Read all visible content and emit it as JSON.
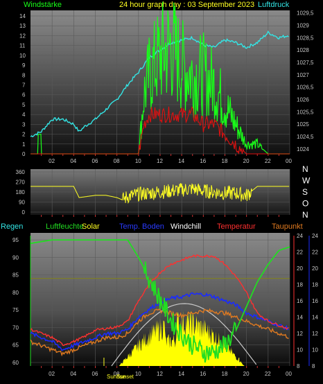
{
  "header": {
    "title": "24 hour graph day : 03 September 2023",
    "left_label": "Windstärke",
    "right_label": "Luftdruck"
  },
  "colors": {
    "wind": "#19ff19",
    "gust_red": "#e01010",
    "pressure": "#33e6e6",
    "wind_dir": "#ffff22",
    "humidity": "#22dd22",
    "solar": "#ffff00",
    "soil_temp": "#1a2bff",
    "windchill": "#ffffff",
    "temperature": "#ff3030",
    "dewpoint": "#e07a20",
    "rain": "#808020",
    "sun_curve": "#c8c8c8"
  },
  "x_ticks": [
    "02",
    "04",
    "06",
    "08",
    "10",
    "12",
    "14",
    "16",
    "18",
    "20",
    "22",
    "00"
  ],
  "chart_data": [
    {
      "type": "line",
      "x_unit": "hour",
      "xlim": [
        0,
        24
      ],
      "left_axis": {
        "label": "Windstärke",
        "ticks": [
          "0",
          "1",
          "2",
          "3",
          "4",
          "5",
          "6",
          "7",
          "8",
          "9",
          "10",
          "11",
          "12",
          "13",
          "14"
        ],
        "ylim": [
          0,
          14
        ]
      },
      "right_axis": {
        "label": "Luftdruck",
        "ticks": [
          "1024",
          "1024,5",
          "1025",
          "1025,5",
          "1026",
          "1026,5",
          "1027",
          "1027,5",
          "1028",
          "1028,5",
          "1029",
          "1029,5"
        ],
        "ylim": [
          1023.8,
          1029.6
        ]
      },
      "series": [
        {
          "name": "Luftdruck",
          "axis": "right",
          "color": "#33e6e6",
          "x": [
            0,
            1,
            2,
            3,
            4,
            4.5,
            5,
            6,
            7,
            8,
            9,
            10,
            11,
            12,
            13,
            14,
            15,
            16,
            17,
            18,
            19,
            20,
            21,
            22,
            23,
            24
          ],
          "y": [
            1024.5,
            1024.7,
            1025.2,
            1025.2,
            1025.0,
            1024.7,
            1024.9,
            1025.2,
            1025.6,
            1026.0,
            1026.6,
            1027.1,
            1027.7,
            1028.0,
            1028.3,
            1028.4,
            1028.5,
            1028.2,
            1028.1,
            1028.4,
            1028.3,
            1028.1,
            1028.3,
            1028.7,
            1028.5,
            1028.6
          ]
        },
        {
          "name": "Windstärke",
          "axis": "left",
          "color": "#19ff19",
          "x": [
            0,
            1,
            2,
            3,
            4,
            5,
            6,
            7,
            8,
            9,
            10,
            10.5,
            11,
            12,
            13,
            14,
            15,
            16,
            17,
            18,
            19,
            20,
            21,
            22,
            23,
            24
          ],
          "y": [
            0,
            0,
            0,
            0,
            0,
            0,
            0,
            0,
            0,
            0,
            0,
            6,
            8,
            10,
            11,
            9,
            8,
            8,
            7,
            5,
            3,
            1,
            1,
            0,
            0,
            0
          ]
        },
        {
          "name": "Windböen",
          "axis": "left",
          "color": "#e01010",
          "x": [
            0,
            10,
            10.5,
            11,
            12,
            13,
            14,
            15,
            16,
            17,
            18,
            19,
            20,
            21,
            24
          ],
          "y": [
            0,
            0,
            3,
            4,
            4,
            4,
            4,
            4,
            3,
            3,
            2,
            1,
            0,
            0,
            0
          ]
        }
      ]
    },
    {
      "type": "scatter",
      "x_unit": "hour",
      "xlim": [
        0,
        24
      ],
      "left_axis": {
        "ticks": [
          "0",
          "90",
          "180",
          "270",
          "360"
        ],
        "ylim": [
          0,
          360
        ]
      },
      "right_axis": {
        "ticks": [
          "N",
          "W",
          "S",
          "O",
          "N"
        ]
      },
      "series": [
        {
          "name": "Windrichtung",
          "color": "#ffff22",
          "x": [
            0,
            4,
            4.5,
            6,
            7,
            8,
            8.5,
            9,
            10,
            11,
            12,
            13,
            14,
            15,
            16,
            17,
            18,
            19,
            20,
            21,
            22,
            24
          ],
          "y": [
            230,
            230,
            130,
            150,
            150,
            130,
            110,
            140,
            160,
            170,
            180,
            190,
            200,
            210,
            190,
            180,
            170,
            170,
            150,
            230,
            230,
            230
          ]
        }
      ]
    },
    {
      "type": "line",
      "x_unit": "hour",
      "xlim": [
        0,
        24
      ],
      "legend": [
        "Regen",
        "Luftfeuchte",
        "Solar",
        "Temp. Boden",
        "Windchill",
        "Temperatur",
        "Taupunkt"
      ],
      "left_axis": {
        "ticks": [
          "60",
          "65",
          "70",
          "75",
          "80",
          "85",
          "90",
          "95"
        ],
        "ylim": [
          59,
          97
        ]
      },
      "right_axis_red": {
        "ticks": [
          "8",
          "10",
          "12",
          "14",
          "16",
          "18",
          "20",
          "22",
          "24"
        ],
        "ylim": [
          8,
          24
        ]
      },
      "right_axis_blue": {
        "ticks": [
          "8",
          "10",
          "12",
          "14",
          "16",
          "18",
          "20",
          "22",
          "24"
        ],
        "ylim": [
          8,
          24
        ]
      },
      "sun_markers": [
        "Sunrise",
        "Sunset"
      ],
      "series": [
        {
          "name": "Luftfeuchte",
          "axis": "left",
          "color": "#22dd22",
          "x": [
            0,
            2,
            4,
            6,
            8,
            9,
            10,
            11,
            12,
            13,
            14,
            15,
            16,
            17,
            18,
            19,
            20,
            21,
            22,
            23,
            24
          ],
          "y": [
            94,
            95,
            95,
            95,
            95,
            95,
            90,
            84,
            78,
            72,
            68,
            65,
            63,
            63,
            65,
            69,
            76,
            83,
            88,
            92,
            93
          ]
        },
        {
          "name": "Temperatur",
          "axis": "right",
          "color": "#ff3030",
          "x": [
            0,
            1,
            2,
            3,
            4,
            5,
            6,
            7,
            8,
            9,
            10,
            11,
            12,
            13,
            14,
            15,
            16,
            17,
            18,
            19,
            20,
            21,
            22,
            23,
            24
          ],
          "y": [
            12.5,
            12.0,
            11.5,
            10.6,
            11.0,
            11.6,
            12.4,
            12.6,
            12.8,
            13.5,
            16.0,
            18.0,
            19.5,
            20.5,
            21.0,
            21.5,
            21.5,
            21.5,
            20.5,
            19.0,
            17.0,
            14.5,
            13.5,
            13.0,
            12.5
          ]
        },
        {
          "name": "Temp. Boden",
          "axis": "right",
          "color": "#1a2bff",
          "x": [
            0,
            1,
            2,
            3,
            4,
            5,
            6,
            7,
            8,
            9,
            10,
            11,
            12,
            13,
            14,
            15,
            16,
            17,
            18,
            19,
            20,
            21,
            22,
            23,
            24
          ],
          "y": [
            12.0,
            11.5,
            11.0,
            10.0,
            10.5,
            11.0,
            11.5,
            12.0,
            12.0,
            12.5,
            14.0,
            15.0,
            15.8,
            16.3,
            16.5,
            16.8,
            16.8,
            16.5,
            16.0,
            15.5,
            14.5,
            14.0,
            13.5,
            13.0,
            12.5
          ]
        },
        {
          "name": "Taupunkt",
          "axis": "right",
          "color": "#e07a20",
          "x": [
            0,
            1,
            2,
            3,
            4,
            5,
            6,
            7,
            8,
            9,
            10,
            11,
            12,
            13,
            14,
            15,
            16,
            17,
            18,
            19,
            20,
            21,
            22,
            23,
            24
          ],
          "y": [
            11.0,
            10.5,
            10.0,
            9.5,
            10.0,
            10.5,
            11.0,
            11.5,
            11.5,
            12.0,
            13.5,
            14.5,
            14.8,
            14.5,
            14.2,
            14.5,
            14.8,
            14.7,
            14.5,
            14.0,
            13.5,
            13.0,
            12.5,
            12.0,
            11.5
          ]
        },
        {
          "name": "Regen",
          "axis": "left",
          "color": "#808020",
          "x": [
            0,
            24
          ],
          "y": [
            84,
            84
          ]
        },
        {
          "name": "Solar",
          "axis": "left",
          "color": "#ffff00",
          "x": [
            8,
            9,
            10,
            11,
            12,
            13,
            14,
            15,
            16,
            17,
            18,
            19,
            20
          ],
          "y": [
            60,
            61,
            63,
            66,
            70,
            72,
            74,
            73,
            71,
            68,
            64,
            61,
            60
          ]
        }
      ]
    }
  ]
}
